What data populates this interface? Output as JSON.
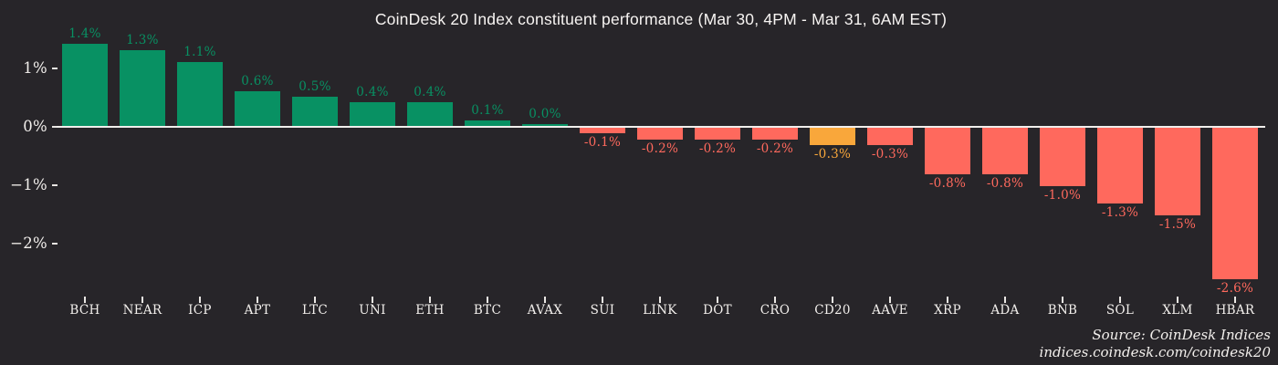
{
  "title": "CoinDesk 20 Index constituent performance (Mar 30, 4PM - Mar 31, 6AM EST)",
  "source": {
    "line1": "Source: CoinDesk Indices",
    "line2": "indices.coindesk.com/coindesk20"
  },
  "colors": {
    "background": "#272529",
    "positive": "#089163",
    "negative": "#ff695d",
    "highlight": "#f9a73b",
    "axis": "#f0eeec",
    "tick": "#e9e6e3",
    "text": "#f2efec"
  },
  "chart_data": {
    "type": "bar",
    "title": "CoinDesk 20 Index constituent performance (Mar 30, 4PM - Mar 31, 6AM EST)",
    "categories": [
      "BCH",
      "NEAR",
      "ICP",
      "APT",
      "LTC",
      "UNI",
      "ETH",
      "BTC",
      "AVAX",
      "SUI",
      "LINK",
      "DOT",
      "CRO",
      "CD20",
      "AAVE",
      "XRP",
      "ADA",
      "BNB",
      "SOL",
      "XLM",
      "HBAR"
    ],
    "values": [
      1.4,
      1.3,
      1.1,
      0.6,
      0.5,
      0.4,
      0.4,
      0.1,
      0.0,
      -0.1,
      -0.2,
      -0.2,
      -0.2,
      -0.3,
      -0.3,
      -0.8,
      -0.8,
      -1.0,
      -1.3,
      -1.5,
      -2.6
    ],
    "labels": [
      "1.4%",
      "1.3%",
      "1.1%",
      "0.6%",
      "0.5%",
      "0.4%",
      "0.4%",
      "0.1%",
      "0.0%",
      "-0.1%",
      "-0.2%",
      "-0.2%",
      "-0.2%",
      "-0.3%",
      "-0.3%",
      "-0.8%",
      "-0.8%",
      "-1.0%",
      "-1.3%",
      "-1.5%",
      "-2.6%"
    ],
    "highlight_category": "CD20",
    "xlabel": "",
    "ylabel": "",
    "y_ticks": [
      "1%",
      "0%",
      "−1%",
      "−2%"
    ],
    "y_tick_values": [
      1,
      0,
      -1,
      -2
    ],
    "ylim": [
      -2.9,
      1.55
    ],
    "grid": false,
    "legend": false,
    "bar_label_position": "outside",
    "units": "%"
  }
}
